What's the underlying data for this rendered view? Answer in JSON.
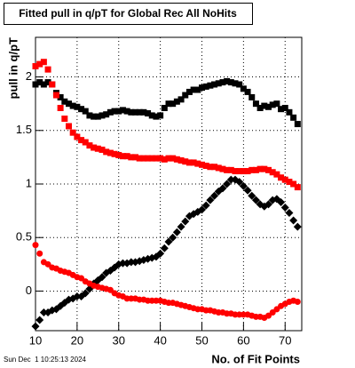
{
  "chart_data": {
    "type": "scatter",
    "title": "Fitted pull in q/pT for Global Rec All NoHits",
    "x_label": "No. of Fit Points",
    "y_label": "pull in q/pT",
    "timestamp": "Sun Dec  1 10:25:13 2024",
    "xlim": [
      10,
      74
    ],
    "ylim": [
      -0.37,
      2.37
    ],
    "xticks": [
      10,
      20,
      30,
      40,
      50,
      60,
      70
    ],
    "yticks": [
      0,
      0.5,
      1,
      1.5,
      2
    ],
    "grid": true,
    "x": [
      10,
      11,
      12,
      13,
      14,
      15,
      16,
      17,
      18,
      19,
      20,
      21,
      22,
      23,
      24,
      25,
      26,
      27,
      28,
      29,
      30,
      31,
      32,
      33,
      34,
      35,
      36,
      37,
      38,
      39,
      40,
      41,
      42,
      43,
      44,
      45,
      46,
      47,
      48,
      49,
      50,
      51,
      52,
      53,
      54,
      55,
      56,
      57,
      58,
      59,
      60,
      61,
      62,
      63,
      64,
      65,
      66,
      67,
      68,
      69,
      70,
      71,
      72,
      73
    ],
    "series": [
      {
        "color": "#000000",
        "marker": "square",
        "values": [
          1.93,
          1.95,
          1.93,
          1.95,
          1.93,
          1.85,
          1.81,
          1.77,
          1.75,
          1.73,
          1.72,
          1.7,
          1.68,
          1.64,
          1.63,
          1.63,
          1.64,
          1.65,
          1.67,
          1.68,
          1.68,
          1.69,
          1.68,
          1.67,
          1.67,
          1.67,
          1.67,
          1.66,
          1.64,
          1.63,
          1.64,
          1.71,
          1.75,
          1.75,
          1.77,
          1.79,
          1.83,
          1.86,
          1.88,
          1.88,
          1.9,
          1.91,
          1.92,
          1.93,
          1.94,
          1.95,
          1.96,
          1.95,
          1.94,
          1.93,
          1.89,
          1.86,
          1.81,
          1.75,
          1.71,
          1.73,
          1.72,
          1.74,
          1.75,
          1.7,
          1.71,
          1.67,
          1.62,
          1.56
        ]
      },
      {
        "color": "#ff0000",
        "marker": "square",
        "values": [
          2.1,
          2.12,
          2.14,
          2.07,
          1.93,
          1.83,
          1.71,
          1.61,
          1.54,
          1.48,
          1.44,
          1.41,
          1.39,
          1.36,
          1.34,
          1.33,
          1.32,
          1.3,
          1.29,
          1.28,
          1.27,
          1.26,
          1.26,
          1.25,
          1.25,
          1.24,
          1.24,
          1.24,
          1.24,
          1.24,
          1.24,
          1.23,
          1.24,
          1.24,
          1.23,
          1.22,
          1.21,
          1.2,
          1.2,
          1.19,
          1.18,
          1.17,
          1.16,
          1.16,
          1.15,
          1.14,
          1.13,
          1.13,
          1.12,
          1.12,
          1.12,
          1.12,
          1.13,
          1.13,
          1.14,
          1.14,
          1.13,
          1.11,
          1.09,
          1.06,
          1.04,
          1.02,
          1.0,
          0.97
        ]
      },
      {
        "color": "#000000",
        "marker": "diamond",
        "values": [
          -0.33,
          -0.27,
          -0.2,
          -0.2,
          -0.18,
          -0.17,
          -0.14,
          -0.11,
          -0.08,
          -0.07,
          -0.05,
          -0.05,
          -0.02,
          0.02,
          0.07,
          0.1,
          0.13,
          0.17,
          0.19,
          0.22,
          0.25,
          0.26,
          0.26,
          0.27,
          0.27,
          0.28,
          0.29,
          0.3,
          0.31,
          0.32,
          0.35,
          0.4,
          0.46,
          0.5,
          0.55,
          0.6,
          0.65,
          0.7,
          0.72,
          0.74,
          0.76,
          0.8,
          0.85,
          0.89,
          0.93,
          0.96,
          1.0,
          1.04,
          1.04,
          1.02,
          0.98,
          0.94,
          0.89,
          0.85,
          0.81,
          0.79,
          0.81,
          0.85,
          0.86,
          0.83,
          0.78,
          0.73,
          0.66,
          0.6
        ]
      },
      {
        "color": "#ff0000",
        "marker": "circle",
        "values": [
          0.43,
          0.35,
          0.27,
          0.25,
          0.22,
          0.21,
          0.19,
          0.18,
          0.17,
          0.15,
          0.13,
          0.12,
          0.09,
          0.07,
          0.05,
          0.04,
          0.03,
          0.02,
          0.01,
          -0.02,
          -0.04,
          -0.05,
          -0.07,
          -0.07,
          -0.07,
          -0.08,
          -0.08,
          -0.09,
          -0.09,
          -0.09,
          -0.09,
          -0.1,
          -0.11,
          -0.11,
          -0.12,
          -0.13,
          -0.14,
          -0.15,
          -0.16,
          -0.17,
          -0.17,
          -0.18,
          -0.18,
          -0.19,
          -0.2,
          -0.2,
          -0.21,
          -0.21,
          -0.22,
          -0.22,
          -0.22,
          -0.22,
          -0.23,
          -0.24,
          -0.24,
          -0.25,
          -0.23,
          -0.2,
          -0.17,
          -0.14,
          -0.12,
          -0.1,
          -0.09,
          -0.1
        ]
      }
    ]
  }
}
